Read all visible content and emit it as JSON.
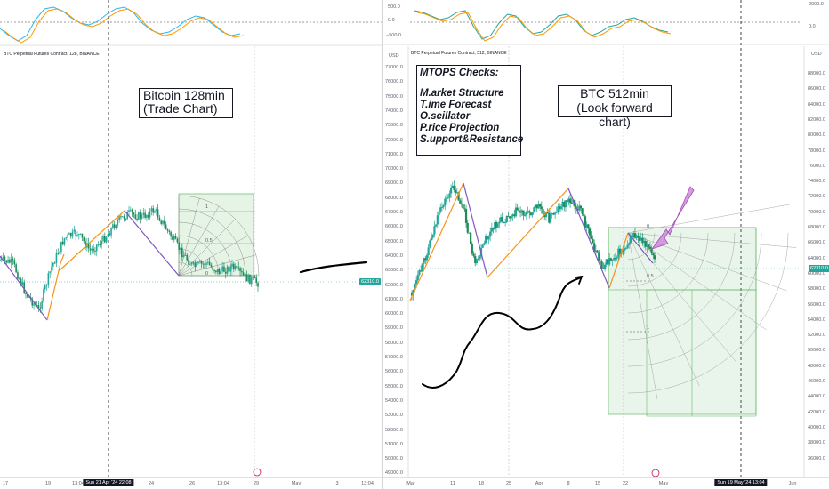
{
  "left_panel": {
    "title": "BTC Perpetual Futures Contract, 128, BINANCE",
    "annotation_lines": [
      "Bitcoin 128min",
      "(Trade Chart)"
    ],
    "fib_labels": [
      "1",
      "0.5",
      "0"
    ],
    "price_tag": "62310.0",
    "x_ticks": [
      "17",
      "19",
      "13:04",
      "Sun 21 Apr '24  22:08",
      "24",
      "26",
      "13:04",
      "29",
      "May",
      "3",
      "13:04"
    ],
    "y_ticks": []
  },
  "right_panel": {
    "title": "BTC Perpetual Futures Contract, 512, BINANCE",
    "currency_left": "USD",
    "currency_right": "USD",
    "mtops_title": "MTOPS Checks:",
    "mtops_items": [
      "M.arket Structure",
      "T.ime Forecast",
      "O.scillator",
      "P.rice Projection",
      "S.upport&Resistance"
    ],
    "annotation_lines": [
      "BTC 512min",
      "(Look forward chart)"
    ],
    "fib_labels": [
      "0",
      "0.5",
      "1"
    ],
    "price_tag": "62310.0",
    "osc_ticks_left": [
      "500.0",
      "0.0",
      "−500.0"
    ],
    "osc_ticks_right": [
      "2000.0",
      "0.0"
    ],
    "y_ticks_left": [
      "77000.0",
      "76000.0",
      "75000.0",
      "74000.0",
      "73000.0",
      "72000.0",
      "71000.0",
      "70000.0",
      "69000.0",
      "68000.0",
      "67000.0",
      "66000.0",
      "65000.0",
      "64000.0",
      "63000.0",
      "62000.0",
      "61000.0",
      "60000.0",
      "59000.0",
      "58000.0",
      "57000.0",
      "56000.0",
      "55000.0",
      "54000.0",
      "53000.0",
      "52000.0",
      "51000.0",
      "50000.0",
      "49000.0"
    ],
    "y_ticks_right": [
      "88000.0",
      "86000.0",
      "84000.0",
      "82000.0",
      "80000.0",
      "78000.0",
      "76000.0",
      "74000.0",
      "72000.0",
      "70000.0",
      "68000.0",
      "66000.0",
      "64000.0",
      "60000.0",
      "58000.0",
      "56000.0",
      "54000.0",
      "52000.0",
      "50000.0",
      "48000.0",
      "46000.0",
      "44000.0",
      "42000.0",
      "40000.0",
      "38000.0",
      "36000.0"
    ],
    "x_ticks": [
      "Mar",
      "11",
      "18",
      "25",
      "Apr",
      "8",
      "15",
      "22",
      "May",
      "Sun 19 May '24  13:04",
      "Jun"
    ]
  },
  "colors": {
    "up": "#26a69a",
    "down": "#089981",
    "orange": "#f7931a",
    "purple": "#7e57c2",
    "pink_arrow": "#c77bd6",
    "grid_box": "#4caf50"
  }
}
